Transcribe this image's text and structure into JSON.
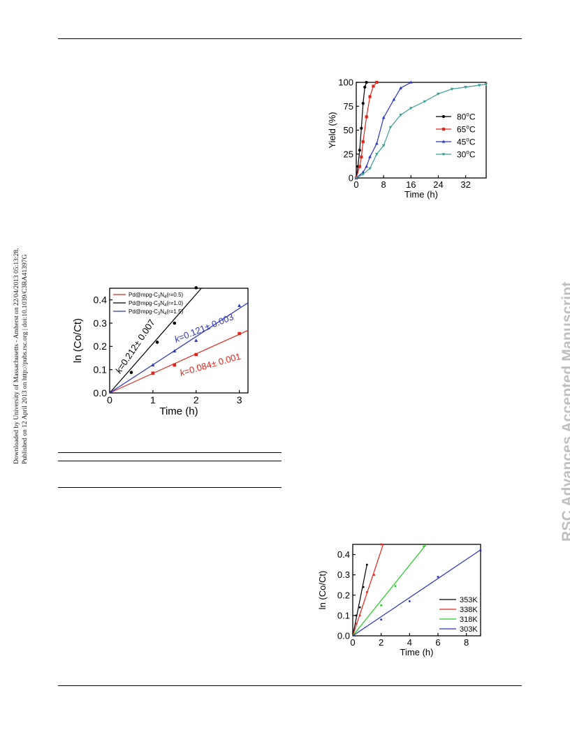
{
  "sidebar": {
    "download_line": "Downloaded by University of Massachusetts - Amherst on 22/04/2013 05:13:28.",
    "published_line": "Published on 12 April 2013 on http://pubs.rsc.org | doi:10.1039/C3RA41397G",
    "watermark": "RSC Advances Accepted Manuscript"
  },
  "chart_data": [
    {
      "type": "line",
      "xlabel": "Time (h)",
      "ylabel": "Yield (%)",
      "xlim": [
        0,
        38
      ],
      "ylim": [
        0,
        100
      ],
      "xticks": [
        0,
        8,
        16,
        24,
        32
      ],
      "yticks": [
        0,
        25,
        50,
        75,
        100
      ],
      "legend_position": "right",
      "series": [
        {
          "name": "80",
          "unit": "C",
          "color": "#000000",
          "marker": "circle",
          "x": [
            0,
            0.5,
            1,
            1.5,
            2,
            2.5,
            3
          ],
          "y": [
            0,
            12,
            29,
            52,
            78,
            95,
            100
          ]
        },
        {
          "name": "65",
          "unit": "C",
          "color": "#e0261d",
          "marker": "square",
          "x": [
            0,
            1,
            1.5,
            2,
            3,
            4,
            5,
            6
          ],
          "y": [
            0,
            12,
            22,
            38,
            64,
            85,
            96,
            100
          ]
        },
        {
          "name": "45",
          "unit": "C",
          "color": "#2a33c4",
          "marker": "triangle",
          "x": [
            0,
            2,
            3,
            4,
            6,
            8,
            11,
            13,
            16
          ],
          "y": [
            0,
            6,
            12,
            22,
            36,
            63,
            82,
            94,
            100
          ]
        },
        {
          "name": "30",
          "unit": "C",
          "color": "#3a9e96",
          "marker": "triangle-down",
          "x": [
            0,
            2,
            4,
            6,
            8,
            10,
            13,
            16,
            20,
            24,
            28,
            32,
            36,
            38
          ],
          "y": [
            0,
            4,
            10,
            25,
            34,
            53,
            66,
            73,
            80,
            88,
            93,
            95,
            97,
            98
          ]
        }
      ]
    },
    {
      "type": "scatter",
      "xlabel": "Time (h)",
      "ylabel": "ln (Co/Ct)",
      "xlim": [
        0,
        3.2
      ],
      "ylim": [
        0,
        0.45
      ],
      "xticks": [
        0,
        1,
        2,
        3
      ],
      "yticks": [
        0.0,
        0.1,
        0.2,
        0.3,
        0.4
      ],
      "legend_position": "top-left",
      "series": [
        {
          "legend": "Pd@mpg-C3N4(r=0.5)",
          "color": "#e0261d",
          "marker": "square",
          "slope": 0.084,
          "x": [
            1,
            1.5,
            2,
            3
          ],
          "y": [
            0.085,
            0.12,
            0.165,
            0.255
          ]
        },
        {
          "legend": "Pd@mpg-C3N4(r=1.0)",
          "color": "#000000",
          "marker": "circle",
          "slope": 0.212,
          "x": [
            0.5,
            1.1,
            1.5,
            2
          ],
          "y": [
            0.088,
            0.218,
            0.3,
            0.452
          ]
        },
        {
          "legend": "Pd@mpg-C3N4(r=1.5)",
          "color": "#2a33c4",
          "marker": "triangle",
          "slope": 0.121,
          "x": [
            1,
            1.5,
            2,
            3
          ],
          "y": [
            0.12,
            0.18,
            0.225,
            0.375
          ]
        }
      ],
      "annotations": [
        {
          "k": "k",
          "text": "=0.212± 0.007",
          "color": "#000000"
        },
        {
          "k": "k",
          "text": "=0.121± 0.003",
          "color": "#2a33c4"
        },
        {
          "k": "k",
          "text": "=0.084± 0.001",
          "color": "#e0261d"
        }
      ]
    },
    {
      "type": "scatter",
      "xlabel": "Time (h)",
      "ylabel": "ln (Co/Ct)",
      "xlim": [
        0,
        9
      ],
      "ylim": [
        0,
        0.45
      ],
      "xticks": [
        0,
        2,
        4,
        6,
        8
      ],
      "yticks": [
        0.0,
        0.1,
        0.2,
        0.3,
        0.4
      ],
      "legend_position": "bottom-right",
      "series": [
        {
          "name": "353K",
          "color": "#000000",
          "slope": 0.35,
          "x": [
            0.25,
            0.5,
            0.75,
            1
          ],
          "y": [
            0.1,
            0.14,
            0.24,
            0.35
          ]
        },
        {
          "name": "338K",
          "color": "#e0261d",
          "slope": 0.21,
          "x": [
            0.25,
            0.5,
            1,
            1.5,
            2
          ],
          "y": [
            0.06,
            0.1,
            0.215,
            0.3,
            0.45
          ]
        },
        {
          "name": "318K",
          "color": "#1fcc1f",
          "slope": 0.087,
          "x": [
            2,
            3,
            5
          ],
          "y": [
            0.15,
            0.245,
            0.44
          ]
        },
        {
          "name": "303K",
          "color": "#2a33c4",
          "slope": 0.047,
          "x": [
            2,
            4,
            6,
            9
          ],
          "y": [
            0.08,
            0.17,
            0.29,
            0.42
          ]
        }
      ]
    }
  ]
}
